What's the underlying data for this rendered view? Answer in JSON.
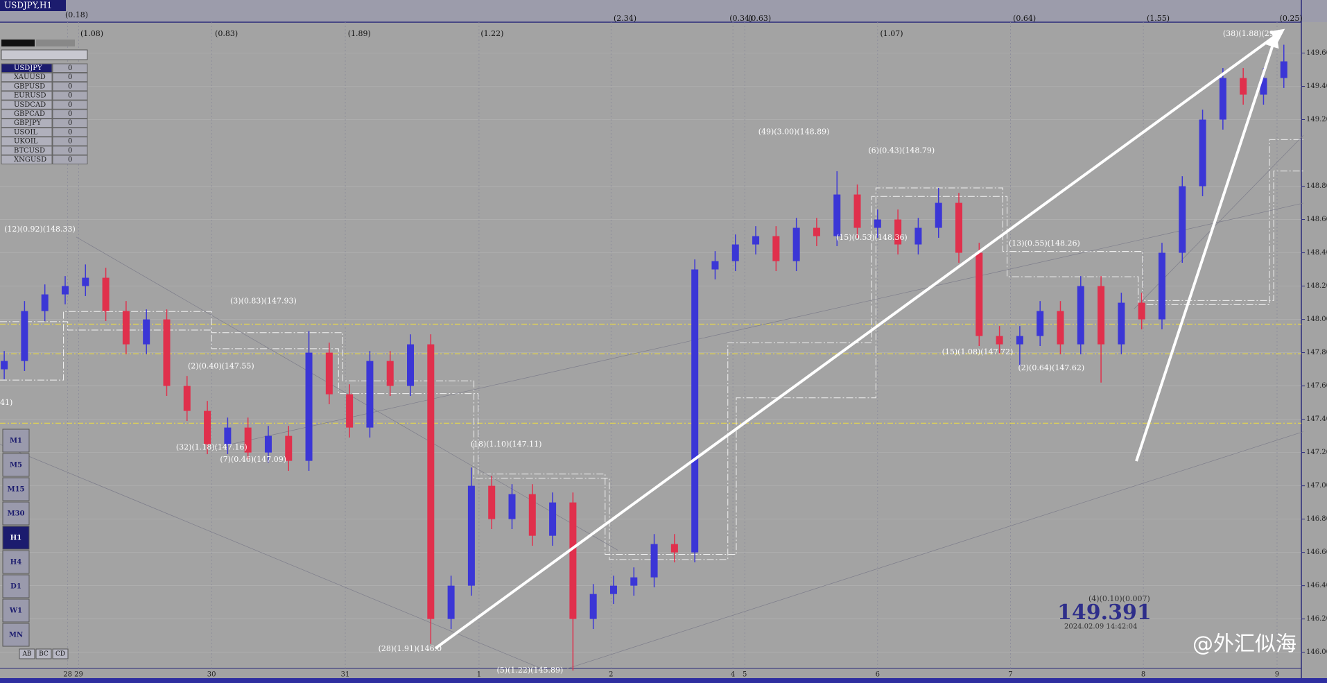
{
  "window": {
    "symbols": [
      {
        "name": "USDJPY",
        "value": 0
      },
      {
        "name": "XAUUSD",
        "value": 0
      },
      {
        "name": "GBPUSD",
        "value": 0
      },
      {
        "name": "EURUSD",
        "value": 0
      },
      {
        "name": "USDCAD",
        "value": 0
      },
      {
        "name": "GBPCAD",
        "value": 0
      },
      {
        "name": "GBPJPY",
        "value": 0
      },
      {
        "name": "USOIL",
        "value": 0
      },
      {
        "name": "UKOIL",
        "value": 0
      },
      {
        "name": "BTCUSD",
        "value": 0
      },
      {
        "name": "XNGUSD",
        "value": 0
      }
    ],
    "timeframes": [
      "M1",
      "M5",
      "M15",
      "M30",
      "H1",
      "H4",
      "D1",
      "W1",
      "MN"
    ],
    "active_timeframe": "H1",
    "tools": [
      "AB",
      "BC",
      "CD"
    ]
  },
  "chart_data": {
    "type": "candlestick",
    "title": "USDJPY,H1",
    "open": [
      147.7,
      147.75,
      148.05,
      148.15,
      148.2,
      148.25,
      148.05,
      147.85,
      148.0,
      147.6,
      147.45,
      147.25,
      147.35,
      147.2,
      147.3,
      147.15,
      147.8,
      147.55,
      147.35,
      147.75,
      147.6,
      147.85,
      146.2,
      146.4,
      147.0,
      146.8,
      146.95,
      146.7,
      146.9,
      146.2,
      146.35,
      146.4,
      146.45,
      146.65,
      146.6,
      148.3,
      148.35,
      148.45,
      148.5,
      148.35,
      148.55,
      148.5,
      148.75,
      148.55,
      148.6,
      148.45,
      148.55,
      148.7,
      148.4,
      147.9,
      147.85,
      147.9,
      148.05,
      147.85,
      148.2,
      147.85,
      148.1,
      148.0,
      148.4,
      148.8,
      149.2,
      149.45,
      149.35,
      149.45
    ],
    "high": [
      147.81,
      148.11,
      148.21,
      148.26,
      148.33,
      148.31,
      148.11,
      148.06,
      148.06,
      147.66,
      147.51,
      147.41,
      147.41,
      147.36,
      147.36,
      147.93,
      147.86,
      147.61,
      147.81,
      147.81,
      147.91,
      147.91,
      146.46,
      147.11,
      147.06,
      147.01,
      147.01,
      146.96,
      146.96,
      146.41,
      146.46,
      146.51,
      146.71,
      146.71,
      148.36,
      148.41,
      148.51,
      148.56,
      148.56,
      148.61,
      148.61,
      148.89,
      148.81,
      148.66,
      148.66,
      148.61,
      148.79,
      148.76,
      148.46,
      147.96,
      147.96,
      148.11,
      148.11,
      148.26,
      148.26,
      148.16,
      148.16,
      148.46,
      148.86,
      149.26,
      149.51,
      149.51,
      149.51,
      149.65
    ],
    "low": [
      147.64,
      147.69,
      147.99,
      148.09,
      148.14,
      147.99,
      147.79,
      147.79,
      147.54,
      147.39,
      147.19,
      147.19,
      147.16,
      147.14,
      147.09,
      147.09,
      147.49,
      147.29,
      147.29,
      147.54,
      147.54,
      146.05,
      146.14,
      146.34,
      146.74,
      146.74,
      146.64,
      146.64,
      145.89,
      146.14,
      146.29,
      146.34,
      146.39,
      146.54,
      146.54,
      148.24,
      148.29,
      148.39,
      148.29,
      148.29,
      148.44,
      148.44,
      148.49,
      148.49,
      148.39,
      148.39,
      148.49,
      148.34,
      147.84,
      147.79,
      147.72,
      147.84,
      147.79,
      147.79,
      147.62,
      147.79,
      147.94,
      147.94,
      148.34,
      148.74,
      149.14,
      149.29,
      149.29,
      149.39
    ],
    "close": [
      147.75,
      148.05,
      148.15,
      148.2,
      148.25,
      148.05,
      147.85,
      148.0,
      147.6,
      147.45,
      147.25,
      147.35,
      147.2,
      147.3,
      147.15,
      147.8,
      147.55,
      147.35,
      147.75,
      147.6,
      147.85,
      146.2,
      146.4,
      147.0,
      146.8,
      146.95,
      146.7,
      146.9,
      146.2,
      146.35,
      146.4,
      146.45,
      146.65,
      146.6,
      148.3,
      148.35,
      148.45,
      148.5,
      148.35,
      148.55,
      148.5,
      148.75,
      148.55,
      148.6,
      148.45,
      148.55,
      148.7,
      148.4,
      147.9,
      147.85,
      147.9,
      148.05,
      147.85,
      148.2,
      147.85,
      148.1,
      148.0,
      148.4,
      148.8,
      149.2,
      149.45,
      149.35,
      149.45,
      149.55
    ],
    "up_color": "#3b36d6",
    "down_color": "#e0304c",
    "ylim": [
      145.857,
      149.877
    ],
    "yticks": [
      {
        "value": 146.0,
        "label": "146.00"
      },
      {
        "value": 146.2,
        "label": "146.20"
      },
      {
        "value": 146.4,
        "label": "146.40"
      },
      {
        "value": 146.6,
        "label": "146.60"
      },
      {
        "value": 146.8,
        "label": "146.80"
      },
      {
        "value": 147.0,
        "label": "147.00"
      },
      {
        "value": 147.2,
        "label": "147.20"
      },
      {
        "value": 147.4,
        "label": "147.40"
      },
      {
        "value": 147.6,
        "label": "147.60"
      },
      {
        "value": 147.8,
        "label": "147.80"
      },
      {
        "value": 148.0,
        "label": "148.00"
      },
      {
        "value": 148.2,
        "label": "148.20"
      },
      {
        "value": 148.4,
        "label": "148.40"
      },
      {
        "value": 148.6,
        "label": "148.60"
      },
      {
        "value": 148.8,
        "label": "148.80"
      },
      {
        "value": 149.2,
        "label": "149.20"
      },
      {
        "value": 149.4,
        "label": "149.40"
      },
      {
        "value": 149.6,
        "label": "149.60"
      }
    ],
    "grid": true
  },
  "top_labels": [
    "(0.18)",
    "(1.08)",
    "(0.83)",
    "(1.89)",
    "(1.22)",
    "(2.34)",
    "(0.34)",
    "(0.63)",
    "(1.07)",
    "(0.64)",
    "(1.55)",
    "(0.25)"
  ],
  "time_axis": [
    "28",
    "29",
    "30",
    "31",
    "1",
    "2",
    "4",
    "5",
    "6",
    "7",
    "8",
    "9"
  ],
  "annotations": [
    "(12)(0.92)(148.33)",
    "(3)(0.83)(147.93)",
    "(2)(0.40)(147.55)",
    "(32)(1.18)(147.16)",
    "(7)(0.46)(147.09)",
    "(18)(1.10)(147.11)",
    "(28)(1.91)(146.0",
    "(5)(1.22)(145.89)",
    "(49)(3.00)(148.89)",
    "(6)(0.43)(148.79)",
    "(15)(0.53)(148.36)",
    "(13)(0.55)(148.26)",
    "(15)(1.08)(147.72)",
    "(2)(0.64)(147.62)",
    "(38)(1.88)(29",
    "41)"
  ],
  "status": {
    "info": "(4)(0.10)(0.007)",
    "price": 149.391,
    "time": "2024.02.09 14:42:04"
  },
  "watermark": "@外汇似海"
}
